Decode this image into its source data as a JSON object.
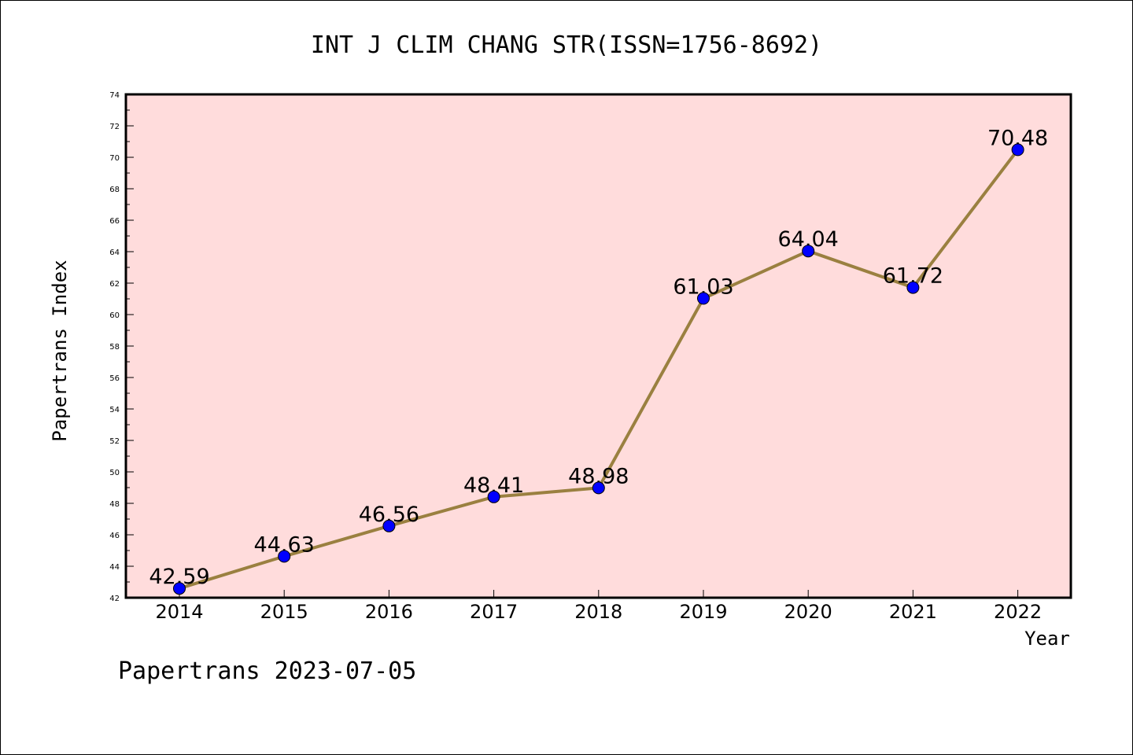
{
  "chart_data": {
    "type": "line",
    "title": "INT J CLIM CHANG STR(ISSN=1756-8692)",
    "xlabel": "Year",
    "ylabel": "Papertrans Index",
    "categories": [
      "2014",
      "2015",
      "2016",
      "2017",
      "2018",
      "2019",
      "2020",
      "2021",
      "2022"
    ],
    "series": [
      {
        "values": [
          42.59,
          44.63,
          46.56,
          48.41,
          48.98,
          61.03,
          64.04,
          61.72,
          70.48
        ],
        "labels": [
          "42.59",
          "44.63",
          "46.56",
          "48.41",
          "48.98",
          "61.03",
          "64.04",
          "61.72",
          "70.48"
        ],
        "line_color": "#9a8040",
        "marker_color": "#0000ff"
      }
    ],
    "ylim": [
      42,
      74
    ],
    "yticks": [
      "42",
      "44",
      "46",
      "48",
      "50",
      "52",
      "54",
      "56",
      "58",
      "60",
      "62",
      "64",
      "66",
      "68",
      "70",
      "72",
      "74"
    ],
    "grid": false,
    "plot_background": "#ffdcdc"
  },
  "footer": "Papertrans 2023-07-05"
}
